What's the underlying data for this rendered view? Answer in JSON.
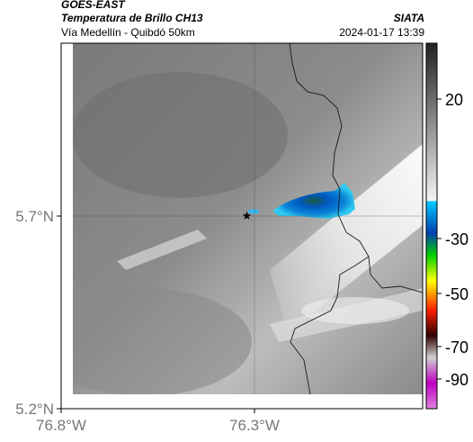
{
  "header": {
    "satellite": "GOES-EAST",
    "product": "Temperatura de Brillo CH13",
    "region": "Vía Medellín - Quibdó 50km",
    "brand": "SIATA",
    "timestamp": "2024-01-17 13:39"
  },
  "map": {
    "x_ticks": [
      {
        "value": -76.8,
        "label": "76.8°W"
      },
      {
        "value": -76.3,
        "label": "76.3°W"
      }
    ],
    "y_ticks": [
      {
        "value": 5.7,
        "label": "5.7°N"
      },
      {
        "value": 5.2,
        "label": "5.2°N"
      }
    ],
    "marker": {
      "lon": -76.32,
      "lat": 5.7,
      "symbol": "star"
    }
  },
  "colorbar": {
    "ticks": [
      {
        "value": 20,
        "label": "20"
      },
      {
        "value": -30,
        "label": "-30"
      },
      {
        "value": -50,
        "label": "-50"
      },
      {
        "value": -70,
        "label": "-70"
      },
      {
        "value": -90,
        "label": "-90"
      }
    ],
    "colors": {
      "warm": "#303030",
      "cold_start": "#00c8ff",
      "blue": "#0050c8",
      "green": "#00c800",
      "yellow": "#ffff00",
      "red": "#ff2000",
      "dark": "#200000",
      "magenta": "#c000c0"
    }
  }
}
